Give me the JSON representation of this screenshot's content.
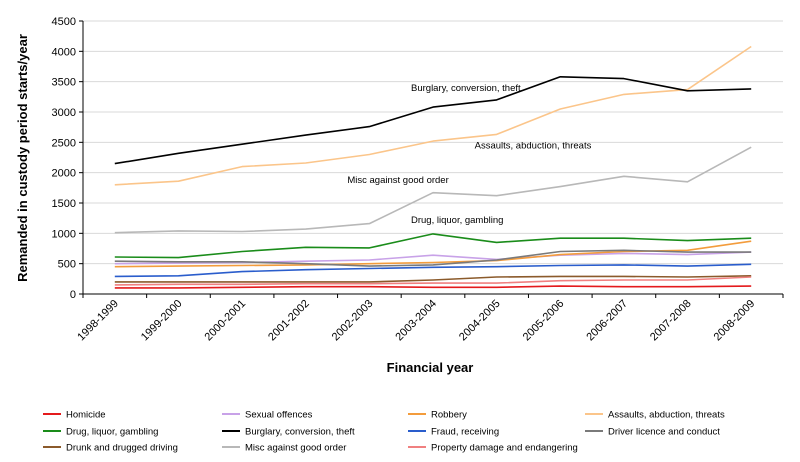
{
  "chart_data": {
    "type": "line",
    "title": "",
    "xlabel": "Financial year",
    "ylabel": "Remanded in custody period starts/year",
    "ylim": [
      0,
      4500
    ],
    "yticks": [
      0,
      500,
      1000,
      1500,
      2000,
      2500,
      3000,
      3500,
      4000,
      4500
    ],
    "grid": "horizontal",
    "legend_position": "bottom",
    "categories": [
      "1998-1999",
      "1999-2000",
      "2000-2001",
      "2001-2002",
      "2002-2003",
      "2003-2004",
      "2004-2005",
      "2005-2006",
      "2006-2007",
      "2007-2008",
      "2008-2009"
    ],
    "series": [
      {
        "name": "Homicide",
        "color": "#e41a1c",
        "values": [
          100,
          100,
          110,
          120,
          120,
          110,
          110,
          130,
          120,
          120,
          130
        ]
      },
      {
        "name": "Sexual offences",
        "color": "#c8a2e8",
        "values": [
          500,
          510,
          520,
          540,
          560,
          640,
          570,
          640,
          670,
          650,
          690
        ]
      },
      {
        "name": "Robbery",
        "color": "#f39c3c",
        "values": [
          450,
          460,
          470,
          480,
          500,
          520,
          550,
          650,
          700,
          720,
          870
        ]
      },
      {
        "name": "Assaults, abduction, threats",
        "color": "#fbc58a",
        "values": [
          1800,
          1860,
          2100,
          2160,
          2300,
          2520,
          2630,
          3050,
          3290,
          3370,
          4080
        ]
      },
      {
        "name": "Drug, liquor, gambling",
        "color": "#1a8c1a",
        "values": [
          610,
          600,
          700,
          770,
          760,
          990,
          850,
          920,
          920,
          880,
          920
        ]
      },
      {
        "name": "Burglary, conversion, theft",
        "color": "#000000",
        "values": [
          2150,
          2320,
          2470,
          2620,
          2760,
          3080,
          3200,
          3580,
          3550,
          3350,
          3380
        ]
      },
      {
        "name": "Fraud, receiving",
        "color": "#2a5dcc",
        "values": [
          290,
          300,
          370,
          400,
          420,
          440,
          450,
          470,
          480,
          460,
          490
        ]
      },
      {
        "name": "Driver licence and conduct",
        "color": "#7a7a7a",
        "values": [
          540,
          530,
          530,
          500,
          460,
          480,
          560,
          700,
          720,
          690,
          690
        ]
      },
      {
        "name": "Drunk and drugged driving",
        "color": "#8b5a2b",
        "values": [
          200,
          200,
          200,
          200,
          200,
          230,
          280,
          290,
          290,
          280,
          300
        ]
      },
      {
        "name": "Misc against good order",
        "color": "#b8b8b8",
        "values": [
          1010,
          1040,
          1030,
          1070,
          1160,
          1670,
          1620,
          1770,
          1940,
          1850,
          2420
        ]
      },
      {
        "name": "Property damage and endangering",
        "color": "#f08080",
        "values": [
          150,
          160,
          160,
          170,
          170,
          180,
          180,
          220,
          230,
          230,
          280
        ]
      }
    ],
    "annotations": [
      {
        "text": "Burglary, conversion, theft",
        "x": "2003-2004",
        "y": 3350
      },
      {
        "text": "Assaults, abduction, threats",
        "x": "2004-2005",
        "y": 2400
      },
      {
        "text": "Misc against good order",
        "x": "2002-2003",
        "y": 1830
      },
      {
        "text": "Drug, liquor, gambling",
        "x": "2003-2004",
        "y": 1170
      }
    ]
  }
}
